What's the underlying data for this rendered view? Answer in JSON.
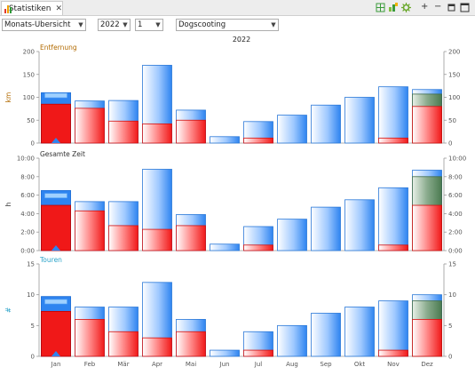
{
  "tab": {
    "label": "Statistiken",
    "close": "✕"
  },
  "toolbar": {
    "plus": "+",
    "minus": "−"
  },
  "controls": {
    "view": "Monats-Übersicht",
    "year": "2022",
    "number": "1",
    "activity": "Dogscooting"
  },
  "colors": {
    "blue": "#3b8ef0",
    "red": "#f02020",
    "green": "#4f7f56",
    "accent_orange": "#b26a00",
    "accent_teal": "#2ba3c9"
  },
  "chart_data": [
    {
      "type": "bar",
      "title": "Entfernung",
      "ylabel": "km",
      "year_label": "2022",
      "ylim": [
        0,
        200
      ],
      "yticks": [
        "0",
        "50",
        "100",
        "150",
        "200"
      ],
      "categories": [
        "Jan",
        "Feb",
        "Mär",
        "Apr",
        "Mai",
        "Jun",
        "Jul",
        "Aug",
        "Sep",
        "Okt",
        "Nov",
        "Dez"
      ],
      "selected_category": "Jan",
      "series": [
        {
          "values": [
            110,
            92,
            93,
            170,
            72,
            14,
            47,
            61,
            83,
            100,
            123,
            117
          ]
        },
        {
          "values": [
            85,
            76,
            48,
            42,
            50,
            0,
            11,
            0,
            0,
            0,
            11,
            80
          ]
        },
        {
          "values": [
            0,
            0,
            0,
            0,
            0,
            0,
            0,
            0,
            0,
            0,
            0,
            107
          ]
        }
      ],
      "marker_values": [
        103
      ]
    },
    {
      "type": "bar",
      "title": "Gesamte Zeit",
      "ylabel": "h",
      "ylim": [
        0,
        10
      ],
      "yticks": [
        "0:00",
        "2:00",
        "4:00",
        "6:00",
        "8:00",
        "10:00"
      ],
      "categories": [
        "Jan",
        "Feb",
        "Mär",
        "Apr",
        "Mai",
        "Jun",
        "Jul",
        "Aug",
        "Sep",
        "Okt",
        "Nov",
        "Dez"
      ],
      "series": [
        {
          "values": [
            6.5,
            5.3,
            5.3,
            8.8,
            3.9,
            0.7,
            2.6,
            3.4,
            4.7,
            5.5,
            6.8,
            8.7
          ]
        },
        {
          "values": [
            4.9,
            4.3,
            2.7,
            2.3,
            2.7,
            0,
            0.6,
            0,
            0,
            0,
            0.6,
            4.9
          ]
        },
        {
          "values": [
            0,
            0,
            0,
            0,
            0,
            0,
            0,
            0,
            0,
            0,
            0,
            8.0
          ]
        }
      ],
      "marker_values": [
        5.9
      ]
    },
    {
      "type": "bar",
      "title": "Touren",
      "ylabel": "#",
      "ylim": [
        0,
        15
      ],
      "yticks": [
        "0",
        "5",
        "10",
        "15"
      ],
      "categories": [
        "Jan",
        "Feb",
        "Mär",
        "Apr",
        "Mai",
        "Jun",
        "Jul",
        "Aug",
        "Sep",
        "Okt",
        "Nov",
        "Dez"
      ],
      "series": [
        {
          "values": [
            9.7,
            8,
            8,
            12,
            6,
            1,
            4,
            5,
            7,
            8,
            9,
            10
          ]
        },
        {
          "values": [
            7.3,
            6,
            4,
            3,
            4,
            0,
            1,
            0,
            0,
            0,
            1,
            6
          ]
        },
        {
          "values": [
            0,
            0,
            0,
            0,
            0,
            0,
            0,
            0,
            0,
            0,
            0,
            9
          ]
        }
      ],
      "marker_values": [
        8.8
      ]
    }
  ]
}
